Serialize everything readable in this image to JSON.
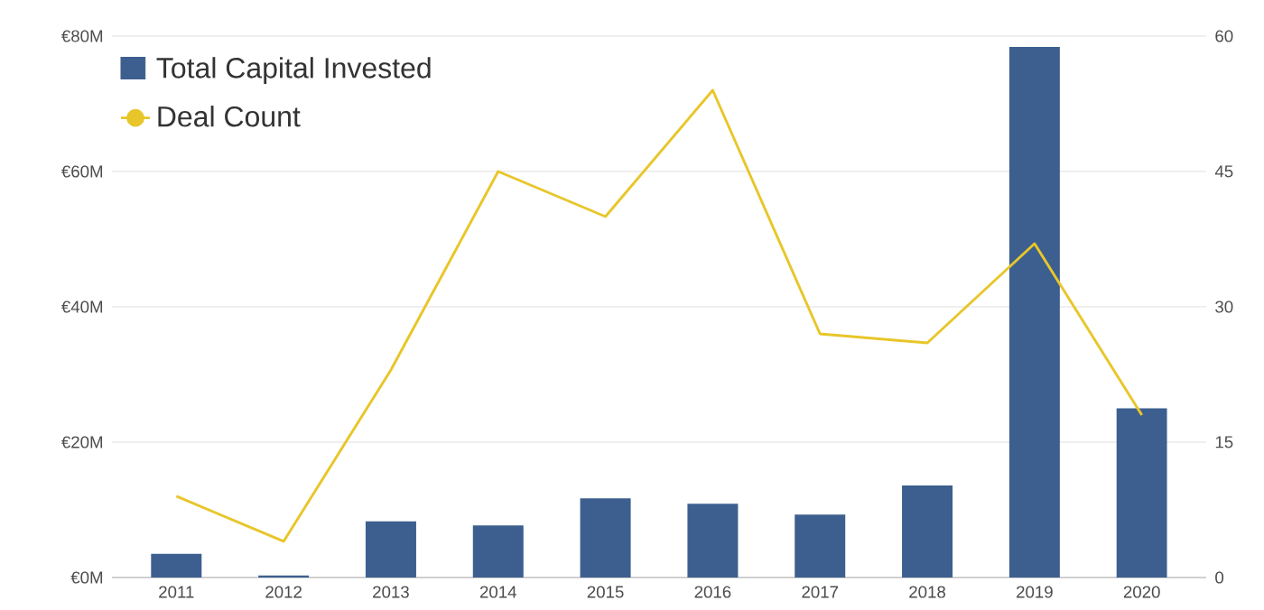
{
  "chart_data": {
    "type": "bar",
    "categories": [
      "2011",
      "2012",
      "2013",
      "2014",
      "2015",
      "2016",
      "2017",
      "2018",
      "2019",
      "2020"
    ],
    "series": [
      {
        "name": "Total Capital Invested",
        "color": "#3d5f8f",
        "values": [
          3.5,
          0.3,
          8.3,
          7.7,
          11.7,
          10.9,
          9.3,
          13.6,
          78.4,
          25
        ]
      },
      {
        "name": "Deal Count",
        "type": "line",
        "axis": "y2",
        "color": "#e8c62a",
        "values": [
          9,
          4,
          23,
          45,
          40,
          54,
          27,
          26,
          37,
          18
        ]
      }
    ],
    "ylim": [
      0,
      80
    ],
    "yticks": [
      {
        "value": 0,
        "label": "€0M"
      },
      {
        "value": 20,
        "label": "€20M"
      },
      {
        "value": 40,
        "label": "€40M"
      },
      {
        "value": 60,
        "label": "€60M"
      },
      {
        "value": 80,
        "label": "€80M"
      }
    ],
    "y2lim": [
      0,
      60
    ],
    "y2ticks": [
      0,
      15,
      30,
      45,
      60
    ],
    "grid": "y",
    "legend": "top left"
  }
}
